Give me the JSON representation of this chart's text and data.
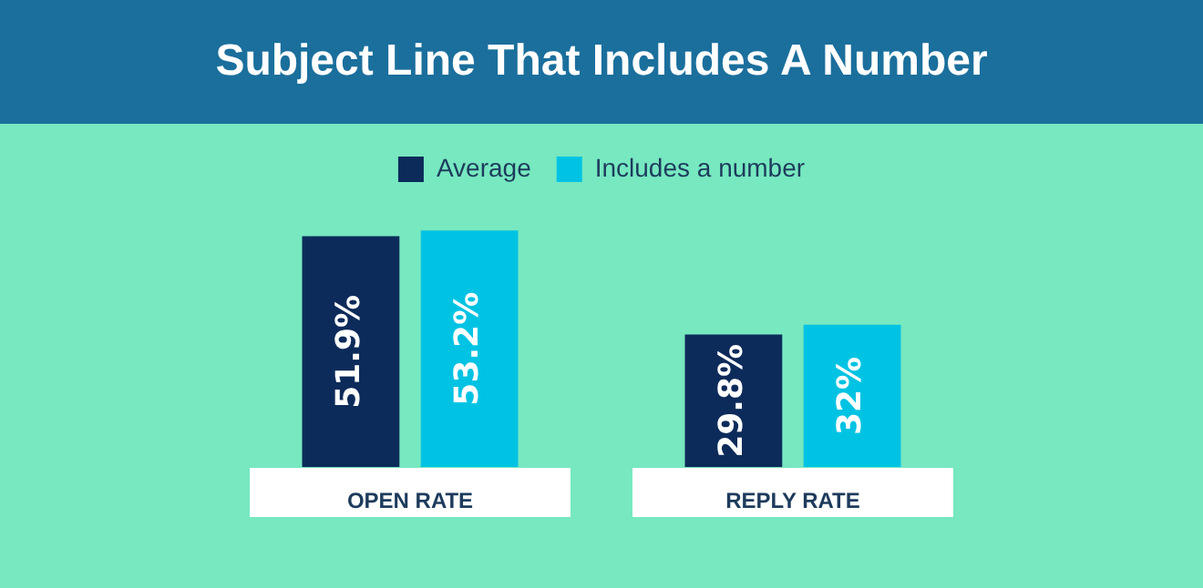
{
  "chart_data": {
    "type": "bar",
    "title": "Subject Line That Includes A Number",
    "categories": [
      "OPEN RATE",
      "REPLY RATE"
    ],
    "series": [
      {
        "name": "Average",
        "color": "#0d2b5a",
        "values": [
          51.9,
          29.8
        ],
        "value_labels": [
          "51.9%",
          "29.8%"
        ]
      },
      {
        "name": "Includes a number",
        "color": "#00c3e3",
        "values": [
          53.2,
          32
        ],
        "value_labels": [
          "53.2%",
          "32%"
        ]
      }
    ],
    "legend": "top",
    "grid": false,
    "tick_labels": "x"
  }
}
